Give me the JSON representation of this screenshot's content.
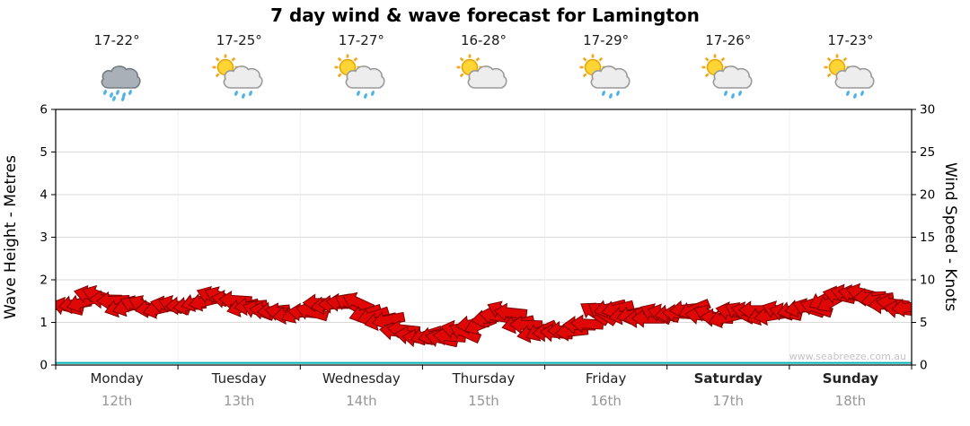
{
  "title": "7 day wind & wave forecast for Lamington",
  "watermark": "www.seabreeze.com.au",
  "axes": {
    "left_label": "Wave Height - Metres",
    "right_label": "Wind Speed - Knots",
    "left_ticks": [
      0,
      1,
      2,
      3,
      4,
      5,
      6
    ],
    "right_ticks": [
      0,
      5,
      10,
      15,
      20,
      25,
      30
    ]
  },
  "days": [
    {
      "name": "Monday",
      "date": "12th",
      "temp": "17-22°",
      "icon": "rain-cloud",
      "bold": false
    },
    {
      "name": "Tuesday",
      "date": "13th",
      "temp": "17-25°",
      "icon": "sun-cloud-rain",
      "bold": false
    },
    {
      "name": "Wednesday",
      "date": "14th",
      "temp": "17-27°",
      "icon": "sun-cloud-rain",
      "bold": false
    },
    {
      "name": "Thursday",
      "date": "15th",
      "temp": "16-28°",
      "icon": "sun-cloud",
      "bold": false
    },
    {
      "name": "Friday",
      "date": "16th",
      "temp": "17-29°",
      "icon": "sun-cloud-rain",
      "bold": false
    },
    {
      "name": "Saturday",
      "date": "17th",
      "temp": "17-26°",
      "icon": "sun-cloud-rain",
      "bold": true
    },
    {
      "name": "Sunday",
      "date": "18th",
      "temp": "17-23°",
      "icon": "sun-cloud-rain",
      "bold": true
    }
  ],
  "chart_data": {
    "type": "scatter",
    "title": "7 day wind & wave forecast for Lamington",
    "xlabel": "",
    "x_categories": [
      "Monday 12th",
      "Tuesday 13th",
      "Wednesday 14th",
      "Thursday 15th",
      "Friday 16th",
      "Saturday 17th",
      "Sunday 18th"
    ],
    "points_per_day": 8,
    "left_axis": {
      "label": "Wave Height - Metres",
      "range": [
        0,
        6
      ]
    },
    "right_axis": {
      "label": "Wind Speed - Knots",
      "range": [
        0,
        30
      ]
    },
    "grid": true,
    "legend": "none",
    "wind": {
      "units": "knots",
      "marker": "direction-arrow",
      "color": "#e00707",
      "speeds": [
        7,
        7.5,
        8,
        7.5,
        7,
        7,
        6.5,
        7,
        7,
        7.5,
        8,
        7.5,
        7,
        6.5,
        6,
        6,
        6.5,
        7,
        7,
        7.5,
        6,
        5,
        4,
        3.5,
        3.5,
        3,
        4,
        5,
        5.5,
        6,
        5,
        4,
        3.5,
        4,
        5,
        6,
        6.5,
        6,
        5.5,
        6,
        6,
        6.5,
        6,
        5.5,
        6,
        6.5,
        6,
        6,
        6.5,
        7,
        7.5,
        8,
        8.5,
        8,
        7,
        6.5
      ],
      "directions": [
        185,
        170,
        195,
        180,
        165,
        200,
        175,
        190,
        180,
        160,
        205,
        185,
        170,
        195,
        180,
        165,
        190,
        175,
        185,
        200,
        170,
        160,
        195,
        180,
        170,
        185,
        200,
        165,
        180,
        195,
        175,
        160,
        185,
        170,
        190,
        205,
        175,
        160,
        185,
        195,
        180,
        165,
        195,
        175,
        200,
        185,
        170,
        190,
        175,
        190,
        160,
        185,
        200,
        170,
        185,
        180
      ]
    },
    "wave": {
      "units": "metres",
      "color": "#00b2b2",
      "constant": 0.05
    }
  }
}
